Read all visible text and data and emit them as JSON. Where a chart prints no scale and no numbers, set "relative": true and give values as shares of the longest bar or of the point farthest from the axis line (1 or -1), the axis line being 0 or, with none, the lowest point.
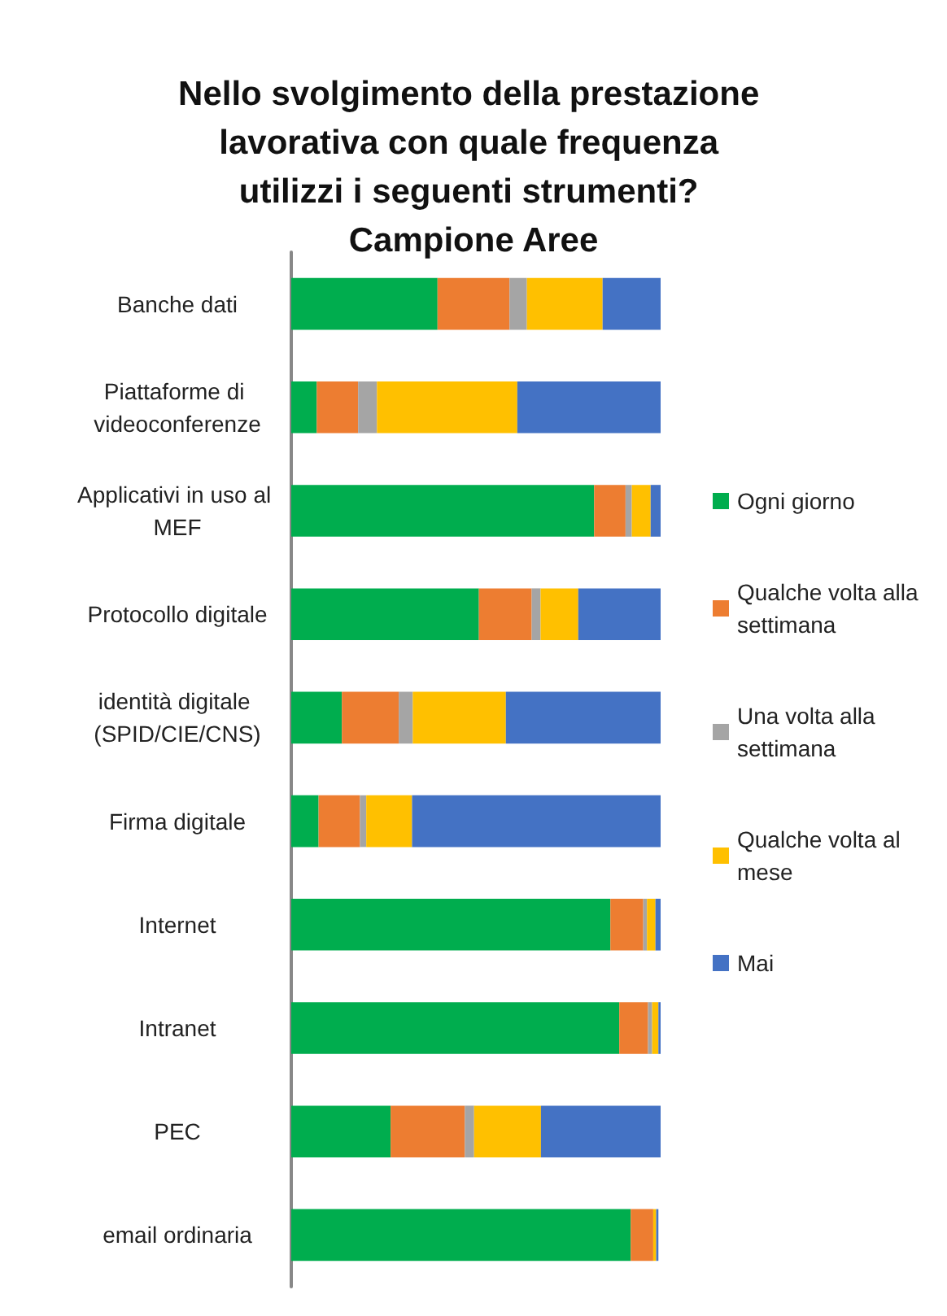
{
  "chart_data": {
    "type": "bar",
    "title": "Nello svolgimento della prestazione lavorativa con quale frequenza utilizzi i seguenti strumenti? Campione Aree",
    "orientation": "horizontal",
    "stacked": true,
    "relative": true,
    "legend": "right",
    "categories": [
      "Banche dati",
      "Piattaforme di videoconferenze",
      "Applicativi in uso al MEF",
      "Protocollo digitale",
      "identità digitale (SPID/CIE/CNS)",
      "Firma digitale",
      "Internet",
      "Intranet",
      "PEC",
      "email ordinaria"
    ],
    "series": [
      {
        "name": "Ogni giorno",
        "color": "#00ad4e",
        "values": [
          0.396,
          0.069,
          0.82,
          0.508,
          0.137,
          0.074,
          0.864,
          0.888,
          0.269,
          0.919
        ]
      },
      {
        "name": "Qualche volta alla settimana",
        "color": "#ed7d31",
        "values": [
          0.195,
          0.112,
          0.085,
          0.143,
          0.154,
          0.112,
          0.089,
          0.078,
          0.201,
          0.061
        ]
      },
      {
        "name": "Una volta alla settimana",
        "color": "#a5a5a5",
        "values": [
          0.047,
          0.051,
          0.017,
          0.024,
          0.038,
          0.017,
          0.01,
          0.011,
          0.025,
          null
        ]
      },
      {
        "name": "Qualche volta al mese",
        "color": "#ffc000",
        "values": [
          0.205,
          0.38,
          0.051,
          0.102,
          0.252,
          0.124,
          0.023,
          0.017,
          0.181,
          0.008
        ]
      },
      {
        "name": "Mai",
        "color": "#4472c4",
        "values": [
          0.157,
          0.388,
          0.027,
          0.223,
          0.419,
          0.673,
          0.014,
          0.006,
          0.324,
          0.006
        ]
      }
    ]
  }
}
